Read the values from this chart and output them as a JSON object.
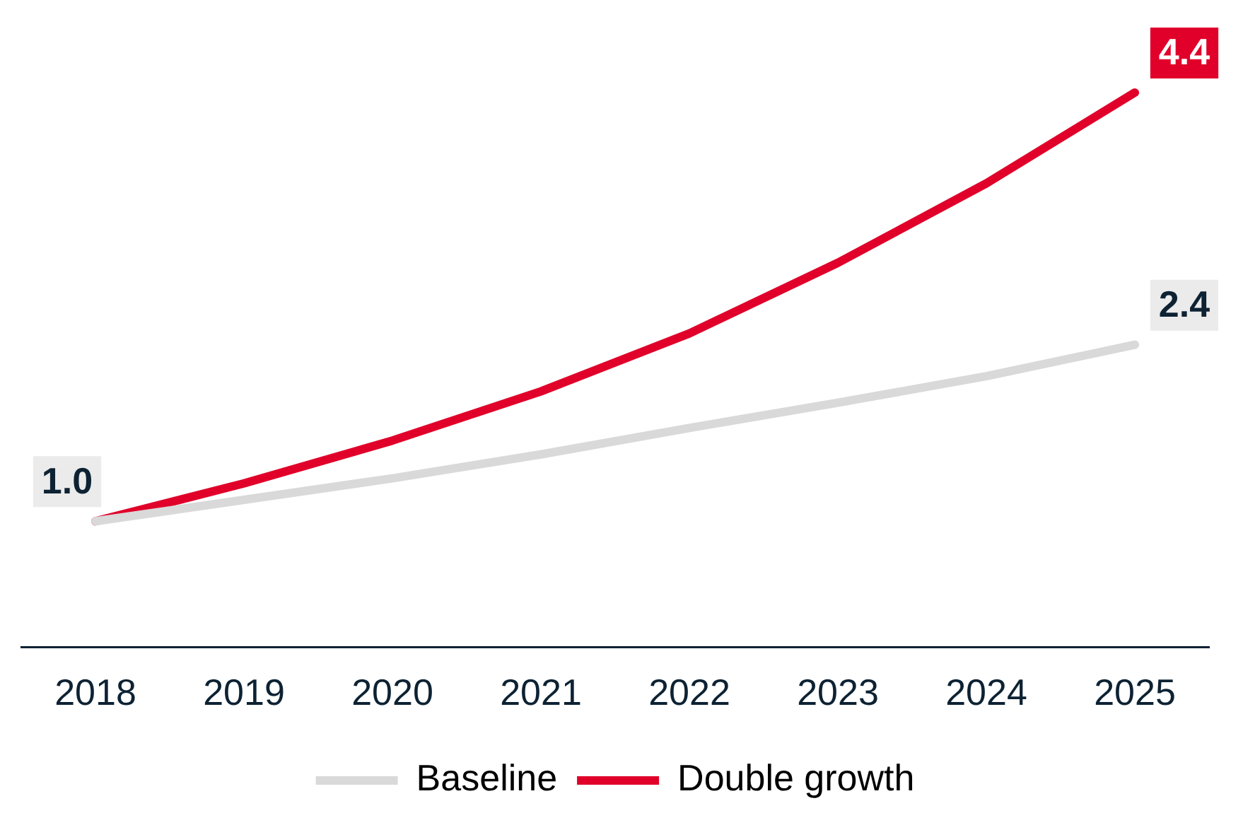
{
  "chart_data": {
    "type": "line",
    "categories": [
      "2018",
      "2019",
      "2020",
      "2021",
      "2022",
      "2023",
      "2024",
      "2025"
    ],
    "series": [
      {
        "name": "Baseline",
        "color": "#d9d9d9",
        "values": [
          1.0,
          1.17,
          1.34,
          1.53,
          1.74,
          1.94,
          2.15,
          2.4
        ],
        "value_labels": [
          "1.0",
          null,
          null,
          null,
          null,
          null,
          null,
          "2.4"
        ]
      },
      {
        "name": "Double growth",
        "color": "#e0002a",
        "values": [
          1.0,
          1.3,
          1.64,
          2.03,
          2.49,
          3.05,
          3.68,
          4.4
        ],
        "value_labels": [
          null,
          null,
          null,
          null,
          null,
          null,
          null,
          "4.4"
        ]
      }
    ],
    "tick_labels": "x",
    "grid": false,
    "legend": "bottom",
    "marker": "none",
    "line_style": "solid"
  }
}
